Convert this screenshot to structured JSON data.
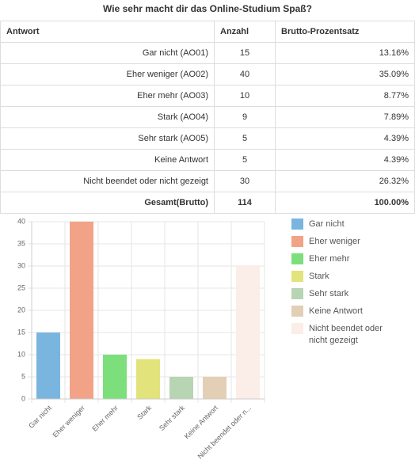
{
  "table": {
    "title": "Wie sehr macht dir das Online-Studium Spaß?",
    "header": [
      "Antwort",
      "Anzahl",
      "Brutto-Prozentsatz"
    ],
    "rows": [
      [
        "Gar nicht (AO01)",
        "15",
        "13.16%"
      ],
      [
        "Eher weniger (AO02)",
        "40",
        "35.09%"
      ],
      [
        "Eher mehr (AO03)",
        "10",
        "8.77%"
      ],
      [
        "Stark (AO04)",
        "9",
        "7.89%"
      ],
      [
        "Sehr stark (AO05)",
        "5",
        "4.39%"
      ],
      [
        "Keine Antwort",
        "5",
        "4.39%"
      ],
      [
        "Nicht beendet oder nicht gezeigt",
        "30",
        "26.32%"
      ],
      [
        "Gesamt(Brutto)",
        "114",
        "100.00%"
      ]
    ]
  },
  "chart_data": {
    "type": "bar",
    "categories": [
      "Gar nicht",
      "Eher weniger",
      "Eher mehr",
      "Stark",
      "Sehr stark",
      "Keine Antwort",
      "Nicht beendet oder n..."
    ],
    "values": [
      15,
      40,
      10,
      9,
      5,
      5,
      30
    ],
    "colors": [
      "#7ab5df",
      "#f2a387",
      "#7ddf7b",
      "#e2e37a",
      "#b7d4b3",
      "#e3cfb5",
      "#fbede7"
    ],
    "legend": [
      "Gar nicht",
      "Eher weniger",
      "Eher mehr",
      "Stark",
      "Sehr stark",
      "Keine Antwort",
      "Nicht beendet oder nicht gezeigt"
    ],
    "ylim": [
      0,
      40
    ],
    "yticks": [
      0,
      5,
      10,
      15,
      20,
      25,
      30,
      35,
      40
    ],
    "grid": true
  }
}
